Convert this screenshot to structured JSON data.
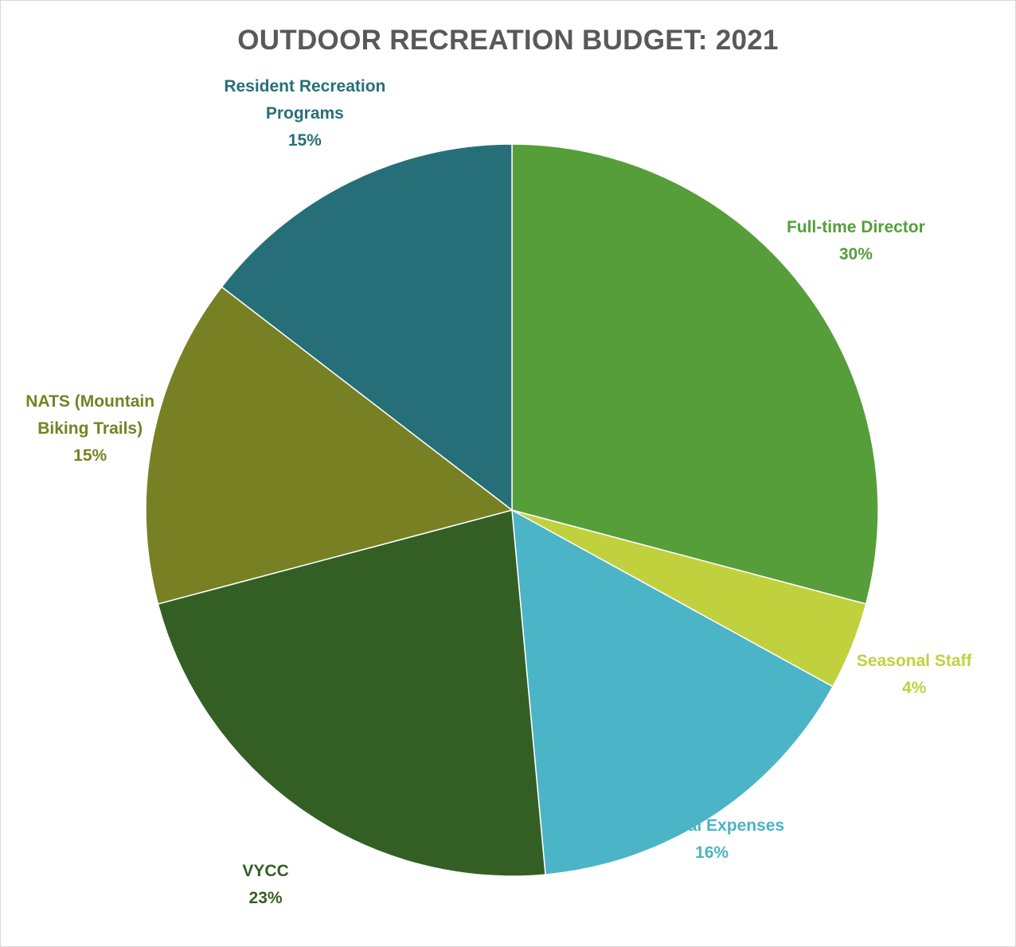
{
  "chart_data": {
    "type": "pie",
    "title": "OUTDOOR RECREATION BUDGET: 2021",
    "legend": "none",
    "slices": [
      {
        "name": "Full-time Director",
        "name_lines": [
          "Full-time Director"
        ],
        "value": 30,
        "pct_label": "30%",
        "color": "#559e3a"
      },
      {
        "name": "Seasonal Staff",
        "name_lines": [
          "Seasonal Staff"
        ],
        "value": 4,
        "pct_label": "4%",
        "color": "#c1d13d"
      },
      {
        "name": "General Expenses",
        "name_lines": [
          "General Expenses"
        ],
        "value": 16,
        "pct_label": "16%",
        "color": "#4bb4c6"
      },
      {
        "name": "VYCC",
        "name_lines": [
          "VYCC"
        ],
        "value": 23,
        "pct_label": "23%",
        "color": "#335f24"
      },
      {
        "name": "NATS (Mountain Biking Trails)",
        "name_lines": [
          "NATS (Mountain",
          "Biking Trails)"
        ],
        "value": 15,
        "pct_label": "15%",
        "color": "#778124"
      },
      {
        "name": "Resident Recreation Programs",
        "name_lines": [
          "Resident Recreation",
          "Programs"
        ],
        "value": 15,
        "pct_label": "15%",
        "color": "#266f79"
      }
    ]
  }
}
